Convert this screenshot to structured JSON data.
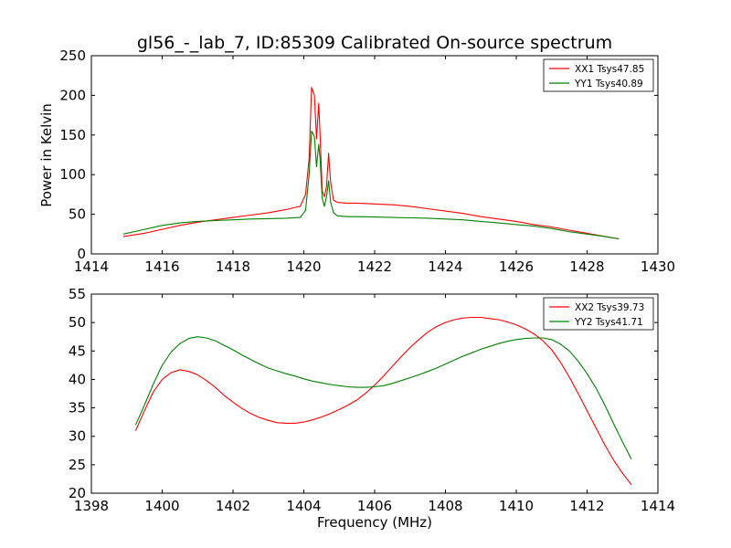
{
  "chart_data": [
    {
      "type": "line",
      "title": "gl56_-_lab_7, ID:85309 Calibrated On-source spectrum",
      "xlabel": "",
      "ylabel": "Power in Kelvin",
      "xlim": [
        1414,
        1430
      ],
      "ylim": [
        0,
        250
      ],
      "xticks": [
        "1414",
        "1416",
        "1418",
        "1420",
        "1422",
        "1424",
        "1426",
        "1428",
        "1430"
      ],
      "yticks": [
        "0",
        "50",
        "100",
        "150",
        "200",
        "250"
      ],
      "legend_position": "top-right",
      "series": [
        {
          "name": "XX1 Tsys47.85",
          "color": "#ff0000",
          "x": [
            1414.9,
            1415.5,
            1416.0,
            1416.5,
            1417.0,
            1417.5,
            1418.0,
            1418.5,
            1419.0,
            1419.5,
            1419.9,
            1420.05,
            1420.15,
            1420.22,
            1420.3,
            1420.36,
            1420.42,
            1420.46,
            1420.52,
            1420.58,
            1420.64,
            1420.7,
            1420.76,
            1420.84,
            1420.95,
            1421.2,
            1421.5,
            1422.0,
            1422.5,
            1423.0,
            1423.5,
            1424.0,
            1424.5,
            1425.0,
            1425.5,
            1426.0,
            1426.5,
            1427.0,
            1427.5,
            1428.0,
            1428.5,
            1428.9
          ],
          "y": [
            22,
            26,
            31,
            36,
            40,
            43,
            46,
            49,
            52,
            56,
            60,
            75,
            120,
            210,
            200,
            145,
            190,
            150,
            80,
            72,
            85,
            127,
            90,
            68,
            65,
            64,
            64,
            63,
            62,
            60,
            57,
            54,
            51,
            47,
            44,
            41,
            37,
            34,
            30,
            26,
            22,
            19
          ]
        },
        {
          "name": "YY1 Tsys40.89",
          "color": "#008000",
          "x": [
            1414.9,
            1415.5,
            1416.0,
            1416.5,
            1417.0,
            1417.5,
            1418.0,
            1418.5,
            1419.0,
            1419.5,
            1419.9,
            1420.05,
            1420.15,
            1420.22,
            1420.3,
            1420.36,
            1420.42,
            1420.46,
            1420.52,
            1420.58,
            1420.64,
            1420.7,
            1420.76,
            1420.84,
            1420.95,
            1421.2,
            1421.5,
            1422.0,
            1422.5,
            1423.0,
            1423.5,
            1424.0,
            1424.5,
            1425.0,
            1425.5,
            1426.0,
            1426.5,
            1427.0,
            1427.5,
            1428.0,
            1428.5,
            1428.9
          ],
          "y": [
            25,
            31,
            36,
            39,
            41,
            42,
            43,
            44,
            44.5,
            45,
            46,
            55,
            100,
            155,
            148,
            110,
            138,
            120,
            70,
            60,
            72,
            92,
            65,
            52,
            48,
            47,
            47,
            46.5,
            46,
            45.5,
            45,
            44,
            43,
            41,
            39,
            37,
            35,
            32,
            28,
            25,
            22,
            19
          ]
        }
      ]
    },
    {
      "type": "line",
      "title": "",
      "xlabel": "Frequency (MHz)",
      "ylabel": "",
      "xlim": [
        1398,
        1414
      ],
      "ylim": [
        20,
        55
      ],
      "xticks": [
        "1398",
        "1400",
        "1402",
        "1404",
        "1406",
        "1408",
        "1410",
        "1412",
        "1414"
      ],
      "yticks": [
        "20",
        "25",
        "30",
        "35",
        "40",
        "45",
        "50",
        "55"
      ],
      "legend_position": "top-right",
      "series": [
        {
          "name": "XX2 Tsys39.73",
          "color": "#ff0000",
          "x": [
            1399.25,
            1399.5,
            1399.75,
            1400.0,
            1400.25,
            1400.5,
            1400.75,
            1401.0,
            1401.25,
            1401.5,
            1401.75,
            1402.0,
            1402.25,
            1402.5,
            1402.75,
            1403.0,
            1403.25,
            1403.5,
            1403.75,
            1404.0,
            1404.25,
            1404.5,
            1404.75,
            1405.0,
            1405.25,
            1405.5,
            1405.75,
            1406.0,
            1406.25,
            1406.5,
            1406.75,
            1407.0,
            1407.25,
            1407.5,
            1407.75,
            1408.0,
            1408.25,
            1408.5,
            1408.75,
            1409.0,
            1409.25,
            1409.5,
            1409.75,
            1410.0,
            1410.25,
            1410.5,
            1410.75,
            1411.0,
            1411.25,
            1411.5,
            1411.75,
            1412.0,
            1412.25,
            1412.5,
            1412.75,
            1413.0,
            1413.25
          ],
          "y": [
            31,
            34.5,
            37.8,
            40.0,
            41.2,
            41.7,
            41.4,
            40.8,
            39.8,
            38.6,
            37.2,
            36.0,
            34.9,
            34.0,
            33.3,
            32.8,
            32.4,
            32.3,
            32.3,
            32.5,
            32.9,
            33.4,
            34.0,
            34.7,
            35.5,
            36.4,
            37.6,
            39.0,
            40.6,
            42.3,
            44.0,
            45.6,
            47.0,
            48.3,
            49.3,
            50.0,
            50.5,
            50.8,
            50.9,
            50.9,
            50.7,
            50.5,
            50.1,
            49.6,
            48.9,
            48.0,
            46.8,
            45.2,
            43.0,
            40.4,
            37.5,
            34.5,
            31.5,
            28.5,
            25.8,
            23.5,
            21.5
          ]
        },
        {
          "name": "YY2 Tsys41.71",
          "color": "#008000",
          "x": [
            1399.25,
            1399.5,
            1399.75,
            1400.0,
            1400.25,
            1400.5,
            1400.75,
            1401.0,
            1401.25,
            1401.5,
            1401.75,
            1402.0,
            1402.25,
            1402.5,
            1402.75,
            1403.0,
            1403.25,
            1403.5,
            1403.75,
            1404.0,
            1404.25,
            1404.5,
            1404.75,
            1405.0,
            1405.25,
            1405.5,
            1405.75,
            1406.0,
            1406.25,
            1406.5,
            1406.75,
            1407.0,
            1407.25,
            1407.5,
            1407.75,
            1408.0,
            1408.25,
            1408.5,
            1408.75,
            1409.0,
            1409.25,
            1409.5,
            1409.75,
            1410.0,
            1410.25,
            1410.5,
            1410.75,
            1411.0,
            1411.25,
            1411.5,
            1411.75,
            1412.0,
            1412.25,
            1412.5,
            1412.75,
            1413.0,
            1413.25
          ],
          "y": [
            32,
            35.5,
            39.2,
            42.5,
            44.8,
            46.3,
            47.2,
            47.5,
            47.3,
            46.8,
            46.0,
            45.2,
            44.3,
            43.5,
            42.7,
            42.0,
            41.5,
            41.0,
            40.6,
            40.1,
            39.7,
            39.4,
            39.1,
            38.9,
            38.7,
            38.6,
            38.6,
            38.7,
            38.9,
            39.3,
            39.8,
            40.3,
            40.8,
            41.4,
            42.0,
            42.7,
            43.4,
            44.1,
            44.7,
            45.3,
            45.8,
            46.3,
            46.7,
            47.0,
            47.2,
            47.3,
            47.3,
            47.0,
            46.2,
            45.0,
            43.2,
            41.0,
            38.5,
            35.5,
            32.2,
            29.0,
            26.0
          ]
        }
      ]
    }
  ]
}
